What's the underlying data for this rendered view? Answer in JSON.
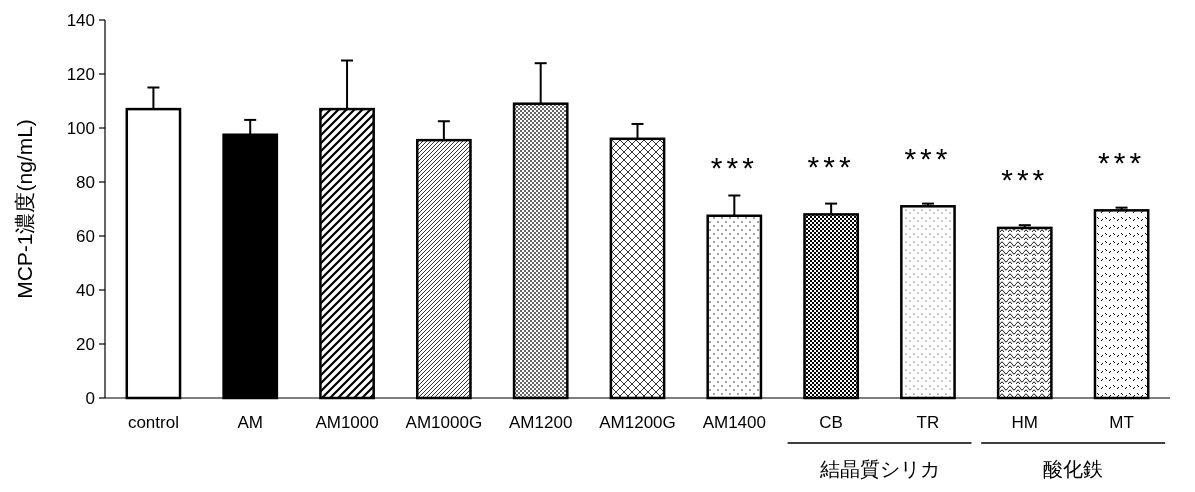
{
  "chart_data": {
    "type": "bar",
    "ylabel": "MCP-1濃度(ng/mL)",
    "categories": [
      "control",
      "AM",
      "AM1000",
      "AM1000G",
      "AM1200",
      "AM1200G",
      "AM1400",
      "CB",
      "TR",
      "HM",
      "MT"
    ],
    "values": [
      107,
      97.5,
      107,
      95.5,
      109,
      96,
      67.5,
      68,
      71,
      63,
      69.5
    ],
    "errors": [
      8,
      5.5,
      18,
      7,
      15,
      5.5,
      7.5,
      4,
      1,
      1,
      1
    ],
    "colors": [
      "#ffffff",
      "#000000",
      "#ffffff",
      "#ffffff",
      "#ffffff",
      "#ffffff",
      "#ffffff",
      "#ffffff",
      "#ffffff",
      "#ffffff",
      "#ffffff"
    ],
    "ylim": [
      0,
      140
    ],
    "yticks": [
      0,
      20,
      40,
      60,
      80,
      100,
      120,
      140
    ],
    "grid": false,
    "annotations": [
      "***",
      "***",
      "***",
      "***",
      "***",
      "結晶質シリカ",
      "酸化鉄"
    ]
  }
}
